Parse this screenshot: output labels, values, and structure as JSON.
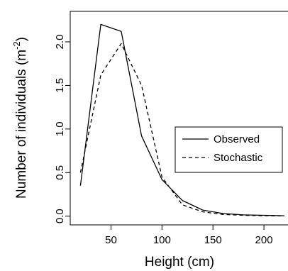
{
  "chart_data": {
    "type": "line",
    "xlabel": "Height (cm)",
    "ylabel": "Number of individuals (m",
    "ylabel_superscript": "-2",
    "ylabel_close": ")",
    "xlim": [
      10,
      225
    ],
    "ylim": [
      -0.1,
      2.35
    ],
    "x_ticks": [
      50,
      100,
      150,
      200
    ],
    "x_tick_labels": [
      "50",
      "100",
      "150",
      "200"
    ],
    "y_ticks": [
      0.0,
      0.5,
      1.0,
      1.5,
      2.0
    ],
    "y_tick_labels": [
      "0.0",
      "0.5",
      "1.0",
      "1.5",
      "2.0"
    ],
    "legend_position": "right",
    "series": [
      {
        "name": "Observed",
        "style": "solid",
        "x": [
          20,
          40,
          60,
          80,
          100,
          120,
          140,
          160,
          180,
          200,
          220
        ],
        "values": [
          0.35,
          2.2,
          2.12,
          0.92,
          0.42,
          0.18,
          0.07,
          0.03,
          0.015,
          0.01,
          0.005
        ]
      },
      {
        "name": "Stochastic",
        "style": "dashed",
        "x": [
          20,
          40,
          60,
          80,
          100,
          120,
          140,
          160,
          180,
          200,
          220
        ],
        "values": [
          0.5,
          1.62,
          1.98,
          1.5,
          0.45,
          0.13,
          0.05,
          0.02,
          0.01,
          0.005,
          0.003
        ]
      }
    ]
  }
}
